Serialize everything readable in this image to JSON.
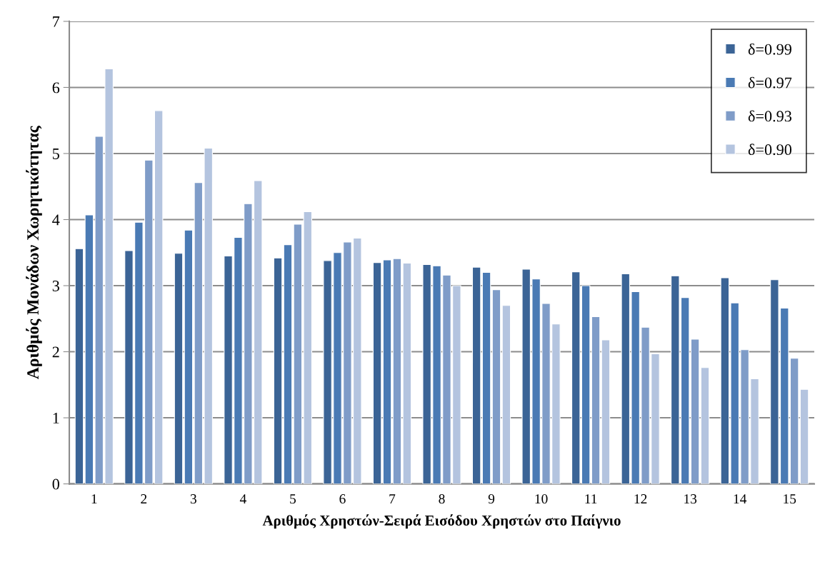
{
  "chart_data": {
    "type": "bar",
    "xlabel": "Αριθμός Χρηστών-Σειρά Εισόδου Χρηστών στο Παίγνιο",
    "ylabel": "Αριθμός Μονάδων Χωρητικότητας",
    "categories": [
      "1",
      "2",
      "3",
      "4",
      "5",
      "6",
      "7",
      "8",
      "9",
      "10",
      "11",
      "12",
      "13",
      "14",
      "15"
    ],
    "series": [
      {
        "name": "δ=0.99",
        "color": "#3b6496",
        "values": [
          3.56,
          3.53,
          3.49,
          3.45,
          3.42,
          3.38,
          3.35,
          3.32,
          3.28,
          3.25,
          3.21,
          3.18,
          3.15,
          3.12,
          3.09
        ]
      },
      {
        "name": "δ=0.97",
        "color": "#4a7ab4",
        "values": [
          4.07,
          3.96,
          3.84,
          3.73,
          3.62,
          3.5,
          3.39,
          3.3,
          3.2,
          3.1,
          3.0,
          2.91,
          2.82,
          2.74,
          2.66
        ]
      },
      {
        "name": "δ=0.93",
        "color": "#7f9cc8",
        "values": [
          5.26,
          4.9,
          4.56,
          4.24,
          3.93,
          3.66,
          3.41,
          3.16,
          2.94,
          2.73,
          2.53,
          2.37,
          2.19,
          2.03,
          1.9
        ]
      },
      {
        "name": "δ=0.90",
        "color": "#b4c4df",
        "values": [
          6.28,
          5.65,
          5.08,
          4.59,
          4.12,
          3.72,
          3.34,
          3.0,
          2.7,
          2.42,
          2.18,
          1.97,
          1.76,
          1.59,
          1.43
        ]
      }
    ],
    "ylim": [
      0,
      7
    ],
    "yticks": [
      0,
      1,
      2,
      3,
      4,
      5,
      6,
      7
    ],
    "grid": "y",
    "legend": "top right"
  }
}
